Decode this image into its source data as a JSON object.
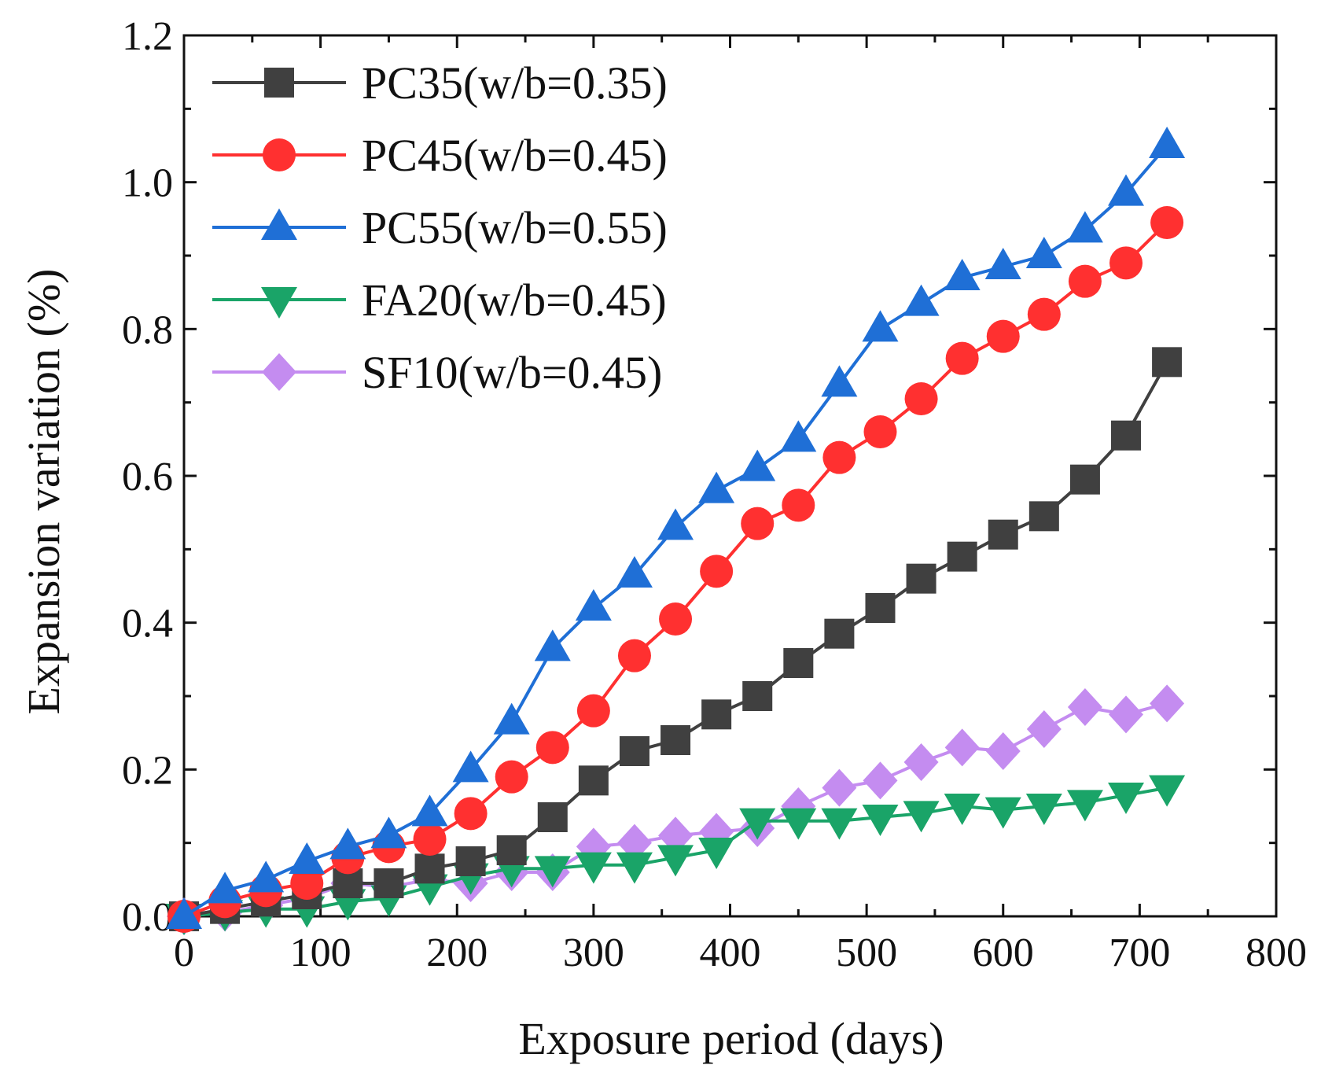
{
  "chart_data": {
    "type": "line",
    "title": "",
    "xlabel": "Exposure period (days)",
    "ylabel": "Expansion variation (%)",
    "xlim": [
      0,
      800
    ],
    "ylim": [
      0,
      1.2
    ],
    "xticks": [
      0,
      100,
      200,
      300,
      400,
      500,
      600,
      700,
      800
    ],
    "yticks": [
      0.0,
      0.2,
      0.4,
      0.6,
      0.8,
      1.0,
      1.2
    ],
    "xtick_labels": [
      "0",
      "100",
      "200",
      "300",
      "400",
      "500",
      "600",
      "700",
      "800"
    ],
    "ytick_labels": [
      "0.0",
      "0.2",
      "0.4",
      "0.6",
      "0.8",
      "1.0",
      "1.2"
    ],
    "grid": false,
    "legend_position": "top-left",
    "x": [
      0,
      30,
      60,
      90,
      120,
      150,
      180,
      210,
      240,
      270,
      300,
      330,
      360,
      390,
      420,
      450,
      480,
      510,
      540,
      570,
      600,
      630,
      660,
      690,
      720
    ],
    "series": [
      {
        "name": "PC35(w/b=0.35)",
        "color": "#404040",
        "marker": "square",
        "values": [
          0.0,
          0.01,
          0.02,
          0.03,
          0.045,
          0.045,
          0.065,
          0.075,
          0.09,
          0.135,
          0.185,
          0.225,
          0.24,
          0.275,
          0.3,
          0.345,
          0.385,
          0.42,
          0.46,
          0.49,
          0.52,
          0.545,
          0.595,
          0.655,
          0.755
        ]
      },
      {
        "name": "PC45(w/b=0.45)",
        "color": "#ff3030",
        "marker": "circle",
        "values": [
          0.0,
          0.02,
          0.035,
          0.045,
          0.08,
          0.095,
          0.105,
          0.14,
          0.19,
          0.23,
          0.28,
          0.355,
          0.405,
          0.47,
          0.535,
          0.56,
          0.625,
          0.66,
          0.705,
          0.76,
          0.79,
          0.82,
          0.865,
          0.89,
          0.945
        ]
      },
      {
        "name": "PC55(w/b=0.55)",
        "color": "#1f6fd6",
        "marker": "triangle-up",
        "values": [
          0.0,
          0.035,
          0.05,
          0.075,
          0.095,
          0.11,
          0.14,
          0.2,
          0.265,
          0.365,
          0.42,
          0.465,
          0.53,
          0.58,
          0.61,
          0.65,
          0.725,
          0.8,
          0.835,
          0.87,
          0.885,
          0.9,
          0.935,
          0.985,
          1.05
        ]
      },
      {
        "name": "FA20(w/b=0.45)",
        "color": "#1aa468",
        "marker": "triangle-down",
        "values": [
          0.0,
          0.005,
          0.01,
          0.01,
          0.02,
          0.025,
          0.04,
          0.055,
          0.065,
          0.065,
          0.07,
          0.07,
          0.08,
          0.09,
          0.13,
          0.13,
          0.13,
          0.135,
          0.14,
          0.15,
          0.145,
          0.15,
          0.155,
          0.165,
          0.175
        ]
      },
      {
        "name": "SF10(w/b=0.45)",
        "color": "#c48cf0",
        "marker": "diamond",
        "values": [
          0.0,
          0.005,
          0.015,
          0.025,
          0.045,
          0.04,
          0.05,
          0.045,
          0.06,
          0.06,
          0.095,
          0.1,
          0.11,
          0.115,
          0.12,
          0.15,
          0.175,
          0.185,
          0.21,
          0.23,
          0.225,
          0.255,
          0.285,
          0.275,
          0.29
        ]
      }
    ]
  }
}
